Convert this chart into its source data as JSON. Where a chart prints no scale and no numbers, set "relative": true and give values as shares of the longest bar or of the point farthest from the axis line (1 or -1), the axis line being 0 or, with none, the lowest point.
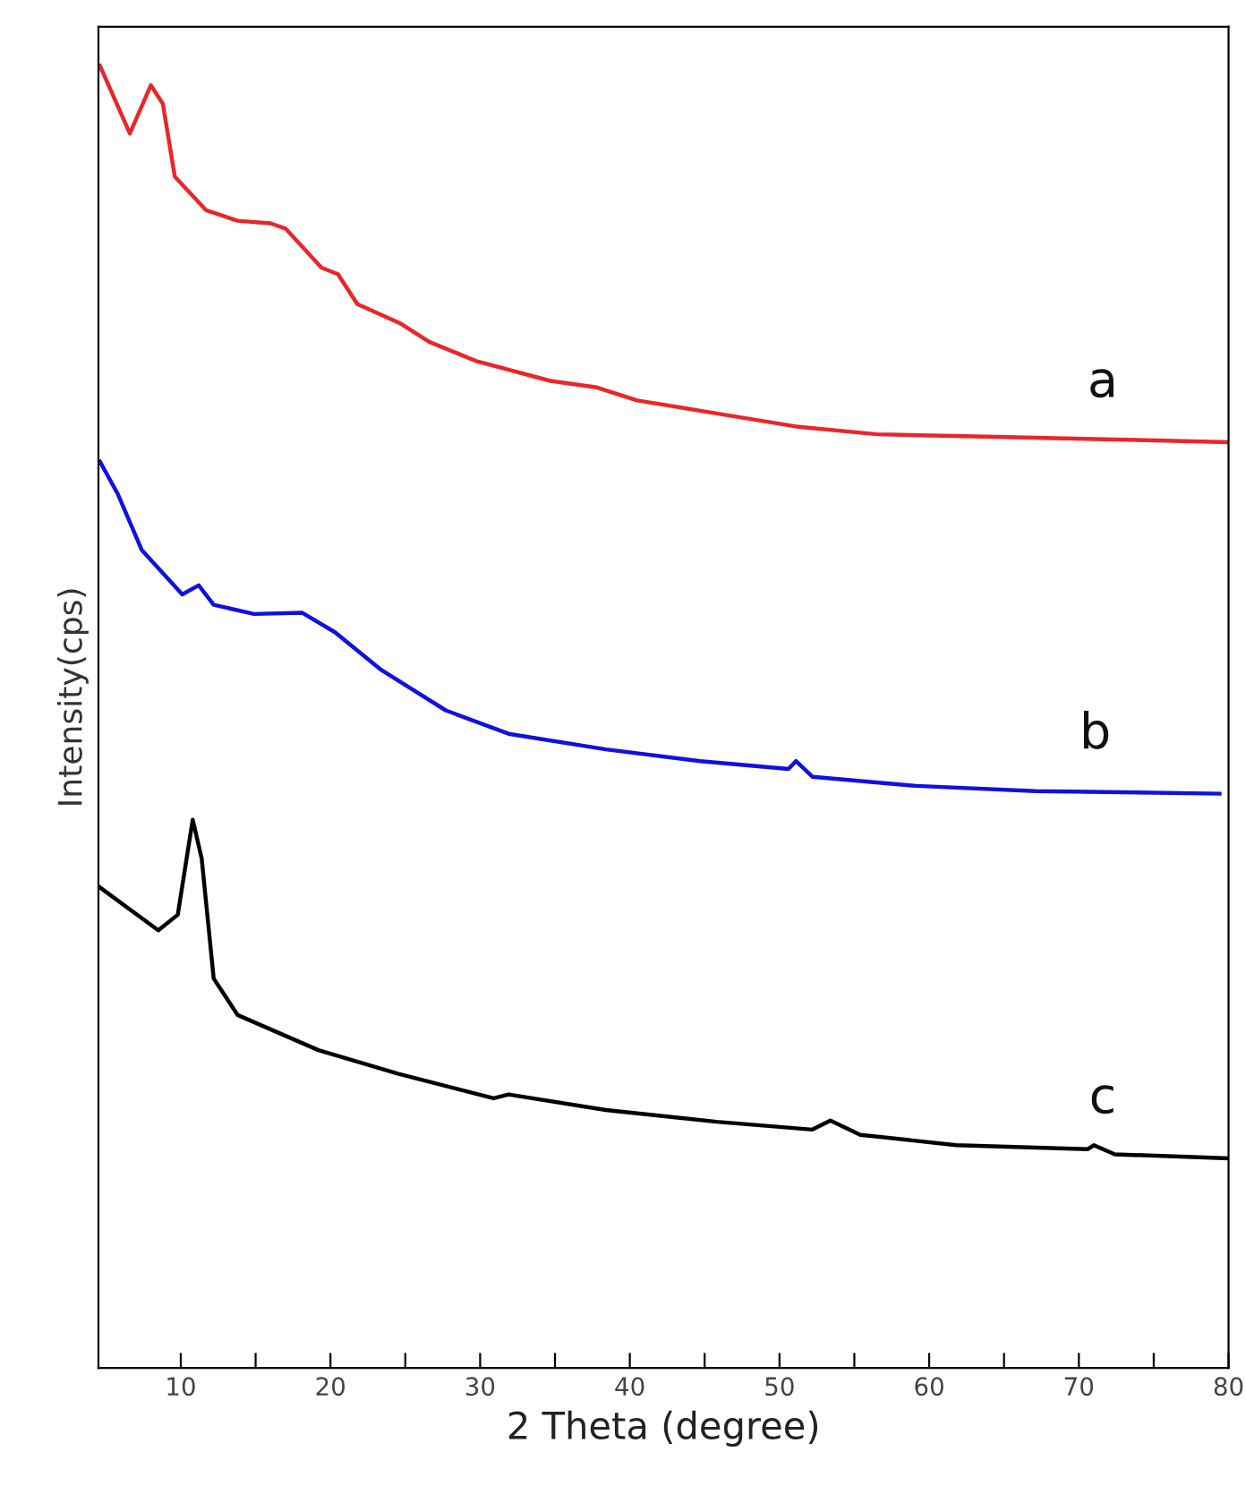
{
  "chart_data": {
    "type": "line",
    "relative": true,
    "xlabel": "2 Theta (degree)",
    "ylabel": "Intensity(cps)",
    "xlim": [
      4.5,
      80
    ],
    "xticks": [
      10,
      {
        "value": 15,
        "label": null
      },
      20,
      {
        "value": 25,
        "label": null
      },
      30,
      {
        "value": 35,
        "label": null
      },
      40,
      {
        "value": 45,
        "label": null
      },
      50,
      {
        "value": 55,
        "label": null
      },
      60,
      {
        "value": 65,
        "label": null
      },
      70,
      {
        "value": 75,
        "label": null
      },
      80
    ],
    "grid": false,
    "legend": false,
    "marker": "none",
    "line_style": "solid",
    "series": [
      {
        "name": "a",
        "color": "#e8262b",
        "x": [
          4.6,
          6.6,
          8.0,
          8.8,
          9.6,
          11.7,
          13.8,
          16.0,
          17.0,
          19.4,
          20.5,
          21.8,
          24.7,
          26.6,
          29.8,
          34.7,
          37.8,
          40.5,
          45.8,
          51.1,
          56.5,
          64.5,
          72.4,
          79.9
        ],
        "values": [
          1.0,
          0.948,
          0.985,
          0.971,
          0.915,
          0.889,
          0.881,
          0.879,
          0.875,
          0.845,
          0.84,
          0.817,
          0.802,
          0.788,
          0.773,
          0.758,
          0.753,
          0.743,
          0.733,
          0.723,
          0.717,
          0.715,
          0.713,
          0.711
        ]
      },
      {
        "name": "b",
        "color": "#1010e0",
        "x": [
          4.6,
          5.8,
          7.4,
          10.1,
          11.2,
          12.2,
          14.9,
          18.1,
          20.3,
          23.4,
          27.7,
          31.9,
          38.4,
          44.7,
          50.6,
          51.1,
          52.2,
          59.1,
          67.1,
          79.4
        ],
        "values": [
          0.696,
          0.671,
          0.628,
          0.594,
          0.601,
          0.586,
          0.579,
          0.58,
          0.565,
          0.536,
          0.505,
          0.487,
          0.475,
          0.466,
          0.46,
          0.466,
          0.454,
          0.447,
          0.443,
          0.441
        ]
      },
      {
        "name": "c",
        "color": "#000000",
        "x": [
          4.6,
          8.5,
          9.8,
          10.8,
          11.4,
          12.2,
          13.8,
          19.2,
          24.5,
          30.9,
          31.9,
          38.4,
          45.8,
          52.2,
          53.4,
          55.4,
          61.8,
          70.6,
          71.0,
          72.4,
          79.9
        ],
        "values": [
          0.369,
          0.336,
          0.348,
          0.421,
          0.391,
          0.299,
          0.271,
          0.244,
          0.226,
          0.207,
          0.21,
          0.198,
          0.189,
          0.183,
          0.19,
          0.179,
          0.171,
          0.168,
          0.171,
          0.164,
          0.161
        ]
      }
    ]
  }
}
